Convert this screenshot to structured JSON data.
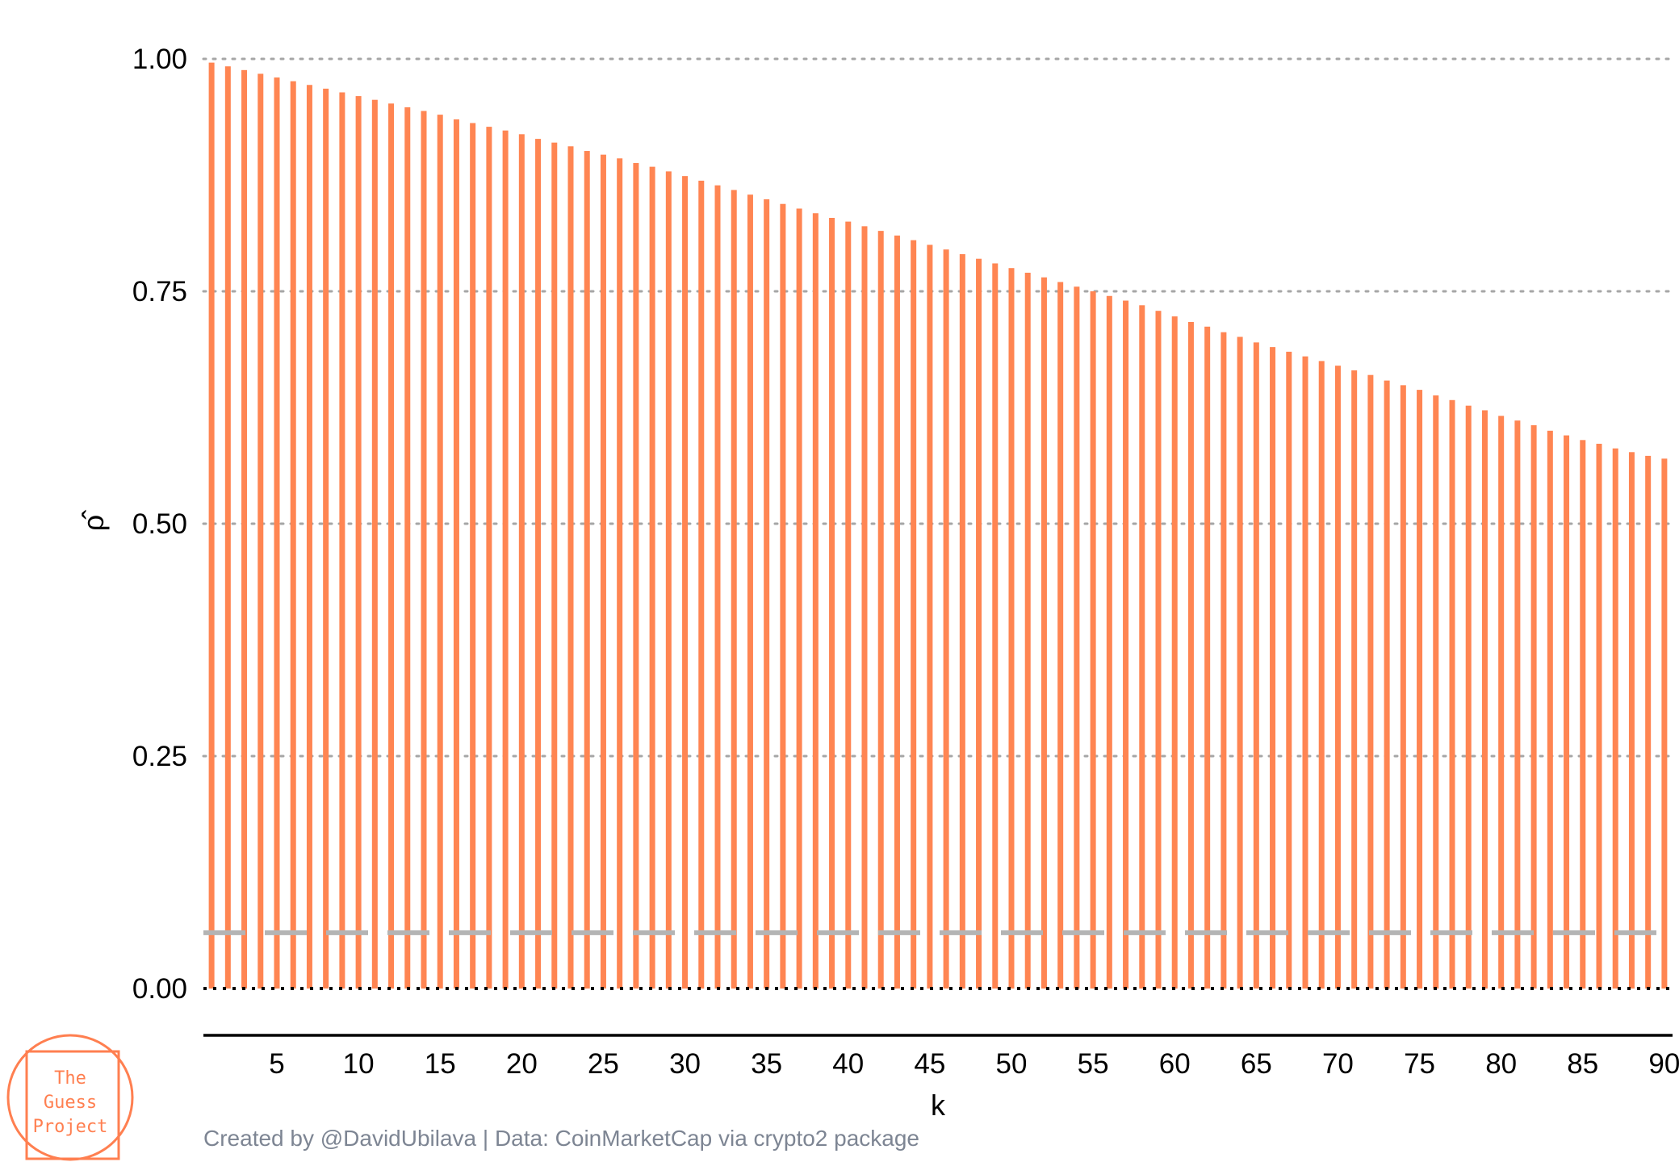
{
  "chart_data": {
    "type": "bar",
    "xlabel": "k",
    "ylabel": "ρ̂",
    "ylim": [
      0,
      1
    ],
    "xlim": [
      0.5,
      90.5
    ],
    "yticks": [
      "0.00",
      "0.25",
      "0.50",
      "0.75",
      "1.00"
    ],
    "ytick_values": [
      0,
      0.25,
      0.5,
      0.75,
      1.0
    ],
    "xticks": [
      "5",
      "10",
      "15",
      "20",
      "25",
      "30",
      "35",
      "40",
      "45",
      "50",
      "55",
      "60",
      "65",
      "70",
      "75",
      "80",
      "85",
      "90"
    ],
    "xtick_values": [
      5,
      10,
      15,
      20,
      25,
      30,
      35,
      40,
      45,
      50,
      55,
      60,
      65,
      70,
      75,
      80,
      85,
      90
    ],
    "lags_first": 1,
    "values": [
      0.996,
      0.992,
      0.988,
      0.984,
      0.98,
      0.976,
      0.972,
      0.968,
      0.964,
      0.96,
      0.956,
      0.952,
      0.948,
      0.944,
      0.94,
      0.935,
      0.931,
      0.927,
      0.923,
      0.919,
      0.914,
      0.91,
      0.906,
      0.901,
      0.897,
      0.893,
      0.888,
      0.884,
      0.879,
      0.874,
      0.869,
      0.864,
      0.859,
      0.854,
      0.849,
      0.844,
      0.839,
      0.834,
      0.829,
      0.825,
      0.82,
      0.815,
      0.81,
      0.805,
      0.8,
      0.795,
      0.79,
      0.785,
      0.78,
      0.775,
      0.77,
      0.765,
      0.76,
      0.755,
      0.75,
      0.745,
      0.74,
      0.735,
      0.729,
      0.723,
      0.717,
      0.712,
      0.706,
      0.701,
      0.695,
      0.69,
      0.685,
      0.68,
      0.675,
      0.67,
      0.665,
      0.66,
      0.654,
      0.649,
      0.644,
      0.638,
      0.633,
      0.627,
      0.622,
      0.616,
      0.611,
      0.606,
      0.6,
      0.595,
      0.59,
      0.586,
      0.581,
      0.577,
      0.573,
      0.57
    ],
    "reference_lines": [
      {
        "y": 0.06,
        "style": "dashed",
        "color": "#b4b4b4"
      },
      {
        "y": 0.0,
        "style": "dotted",
        "color": "#000000"
      }
    ],
    "grid": "horizontal-dotted",
    "legend": "none",
    "colors": {
      "bars": "#ff8552",
      "grid": "#a6a6a6",
      "axis": "#000000"
    }
  },
  "caption": "Created by @DavidUbilava | Data: CoinMarketCap via crypto2 package",
  "logo": {
    "lines": [
      "The",
      "Guess",
      "Project"
    ],
    "color": "#ff7f50"
  }
}
